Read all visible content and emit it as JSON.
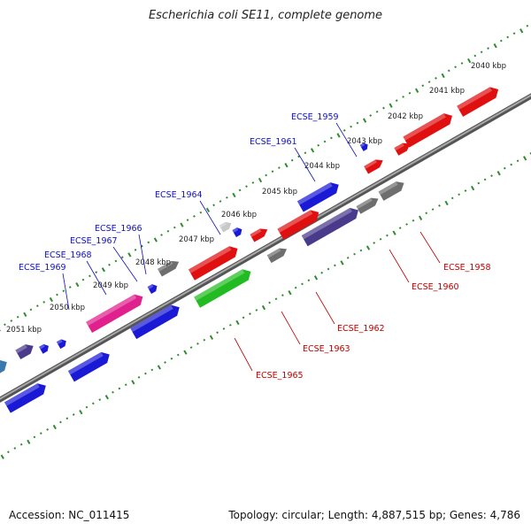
{
  "title": "Escherichia coli SE11, complete genome",
  "footer": {
    "accession": "Accession: NC_011415",
    "summary": "Topology: circular; Length: 4,887,515 bp; Genes: 4,786"
  },
  "colors": {
    "backbone": "#8c8c8c",
    "tick": "#2e8b2e",
    "label_forward": "#1010c0",
    "label_reverse": "#c00000",
    "blue": "#1a1ad6",
    "red": "#e01010",
    "gray": "#6e6e6e",
    "lightgray": "#c8c8c8",
    "pink": "#e0208c",
    "purple": "#4a3a8c",
    "steel": "#3a78b0",
    "green": "#22bb22"
  },
  "scale_labels": [
    "2040 kbp",
    "2041 kbp",
    "2042 kbp",
    "2043 kbp",
    "2044 kbp",
    "2045 kbp",
    "2046 kbp",
    "2047 kbp",
    "2048 kbp",
    "2049 kbp",
    "2050 kbp",
    "2051 kbp"
  ],
  "gene_labels_forward": [
    "ECSE_1959",
    "ECSE_1961",
    "ECSE_1964",
    "ECSE_1966",
    "ECSE_1967",
    "ECSE_1968",
    "ECSE_1969"
  ],
  "gene_labels_reverse": [
    "ECSE_1958",
    "ECSE_1960",
    "ECSE_1962",
    "ECSE_1963",
    "ECSE_1965"
  ]
}
